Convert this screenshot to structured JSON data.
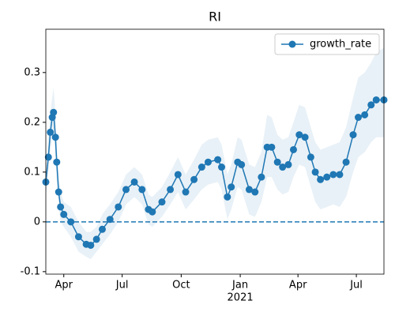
{
  "chart_data": {
    "type": "line",
    "title": "RI",
    "x": [
      3,
      7,
      10,
      13,
      15,
      18,
      20,
      23,
      26,
      31,
      42,
      54,
      66,
      73,
      82,
      91,
      103,
      116,
      128,
      141,
      153,
      163,
      169,
      184,
      197,
      209,
      221,
      234,
      246,
      256,
      271,
      277,
      286,
      292,
      302,
      308,
      320,
      329,
      339,
      348,
      355,
      364,
      372,
      381,
      389,
      398,
      407,
      416,
      423,
      431,
      441,
      451,
      461,
      471,
      482,
      490,
      500,
      510,
      518,
      530
    ],
    "series": [
      {
        "name": "growth_rate",
        "color": "#1f77b4",
        "values": [
          0.08,
          0.13,
          0.18,
          0.21,
          0.22,
          0.17,
          0.12,
          0.06,
          0.03,
          0.015,
          0.0,
          -0.03,
          -0.045,
          -0.047,
          -0.035,
          -0.015,
          0.005,
          0.03,
          0.065,
          0.08,
          0.065,
          0.025,
          0.02,
          0.04,
          0.065,
          0.095,
          0.06,
          0.085,
          0.11,
          0.12,
          0.125,
          0.11,
          0.05,
          0.07,
          0.12,
          0.115,
          0.065,
          0.06,
          0.09,
          0.15,
          0.15,
          0.12,
          0.11,
          0.115,
          0.145,
          0.175,
          0.17,
          0.13,
          0.1,
          0.085,
          0.09,
          0.095,
          0.095,
          0.12,
          0.175,
          0.21,
          0.215,
          0.235,
          0.245,
          0.245
        ],
        "lower": [
          0.05,
          0.1,
          0.14,
          0.17,
          0.18,
          0.13,
          0.08,
          0.03,
          0.0,
          -0.01,
          -0.03,
          -0.06,
          -0.07,
          -0.075,
          -0.06,
          -0.045,
          -0.025,
          0.0,
          0.035,
          0.05,
          0.035,
          -0.005,
          -0.01,
          0.01,
          0.035,
          0.06,
          0.025,
          0.045,
          0.065,
          0.075,
          0.08,
          0.065,
          0.005,
          0.025,
          0.07,
          0.065,
          0.015,
          0.01,
          0.04,
          0.09,
          0.09,
          0.065,
          0.055,
          0.06,
          0.09,
          0.115,
          0.11,
          0.07,
          0.04,
          0.025,
          0.03,
          0.035,
          0.03,
          0.05,
          0.1,
          0.13,
          0.14,
          0.16,
          0.17,
          0.17
        ],
        "upper": [
          0.11,
          0.17,
          0.22,
          0.25,
          0.27,
          0.22,
          0.16,
          0.09,
          0.06,
          0.04,
          0.03,
          0.0,
          -0.02,
          -0.02,
          -0.01,
          0.015,
          0.035,
          0.06,
          0.095,
          0.11,
          0.095,
          0.055,
          0.05,
          0.07,
          0.1,
          0.13,
          0.095,
          0.125,
          0.155,
          0.165,
          0.17,
          0.155,
          0.095,
          0.115,
          0.17,
          0.165,
          0.115,
          0.11,
          0.14,
          0.215,
          0.21,
          0.175,
          0.165,
          0.17,
          0.2,
          0.235,
          0.23,
          0.19,
          0.16,
          0.145,
          0.15,
          0.155,
          0.16,
          0.19,
          0.25,
          0.29,
          0.3,
          0.32,
          0.34,
          0.35
        ]
      }
    ],
    "reference_line": 0,
    "xlim": [
      3,
      530
    ],
    "xticks": [
      {
        "value": 31,
        "label": "Apr"
      },
      {
        "value": 122,
        "label": "Jul"
      },
      {
        "value": 214,
        "label": "Oct"
      },
      {
        "value": 306,
        "label": "Jan",
        "sublabel": "2021"
      },
      {
        "value": 396,
        "label": "Apr"
      },
      {
        "value": 487,
        "label": "Jul"
      }
    ],
    "ylim": [
      -0.105,
      0.387
    ],
    "yticks": [
      -0.1,
      0.0,
      0.1,
      0.2,
      0.3
    ],
    "legend": "upper right"
  }
}
